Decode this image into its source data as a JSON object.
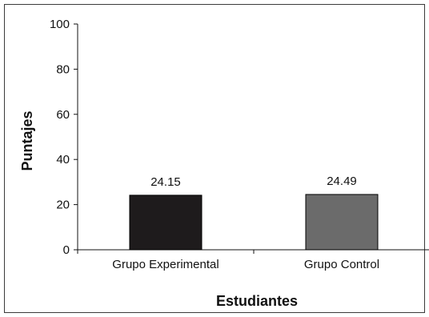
{
  "chart_data": {
    "type": "bar",
    "title": "",
    "xlabel": "Estudiantes",
    "ylabel": "Puntajes",
    "categories": [
      "Grupo Experimental",
      "Grupo Control"
    ],
    "values": [
      24.15,
      24.49
    ],
    "data_labels": [
      "24.15",
      "24.49"
    ],
    "bar_colors": [
      "#1e1b1c",
      "#6b6b6b"
    ],
    "ylim": [
      0,
      100
    ],
    "yticks": [
      "0",
      "20",
      "40",
      "60",
      "80",
      "100"
    ],
    "grid": false,
    "legend": "none"
  }
}
